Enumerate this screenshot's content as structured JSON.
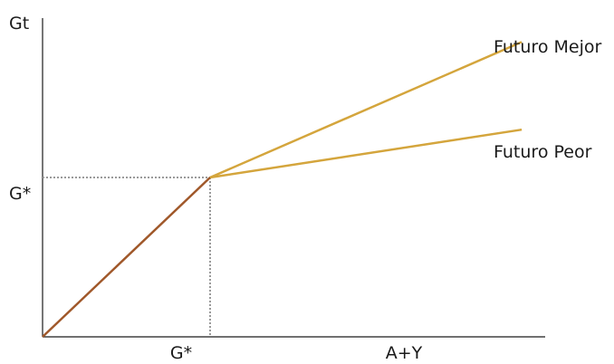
{
  "chart_data": {
    "type": "line",
    "ylabel": "Gt",
    "xlabel": "A+Y",
    "x_ticks": [
      {
        "x": 1,
        "label": "G*"
      }
    ],
    "y_ticks": [
      {
        "y": 1,
        "label": "G*"
      }
    ],
    "xlim": [
      0,
      3.0
    ],
    "ylim": [
      0,
      2.0
    ],
    "reference_point": {
      "x": 1,
      "y": 1
    },
    "colors": {
      "axis": "#1a1a1a",
      "guide": "#9a9a9a",
      "base": "#a0582a",
      "future": "#d4a53c"
    },
    "series": [
      {
        "id": "base",
        "points": [
          {
            "x": 0,
            "y": 0
          },
          {
            "x": 1,
            "y": 1
          }
        ]
      },
      {
        "id": "mejor",
        "name": "Futuro Mejor",
        "points": [
          {
            "x": 1,
            "y": 1
          },
          {
            "x": 2.86,
            "y": 1.85
          }
        ]
      },
      {
        "id": "peor",
        "name": "Futuro Peor",
        "points": [
          {
            "x": 1,
            "y": 1
          },
          {
            "x": 2.86,
            "y": 1.3
          }
        ]
      }
    ]
  }
}
